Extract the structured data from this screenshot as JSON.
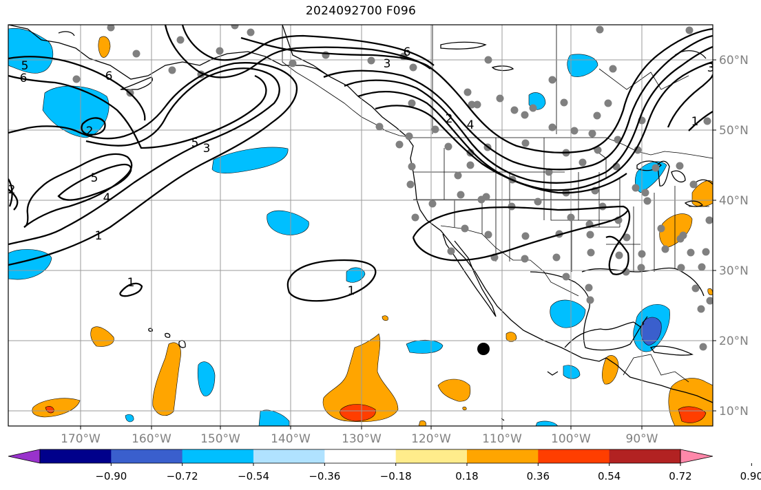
{
  "title": "2024092700 F096",
  "lon_ticks": [
    "170°W",
    "160°W",
    "150°W",
    "140°W",
    "130°W",
    "120°W",
    "110°W",
    "100°W",
    "90°W"
  ],
  "lat_ticks": [
    "60°N",
    "50°N",
    "40°N",
    "30°N",
    "20°N",
    "10°N"
  ],
  "colorbar": {
    "labels": [
      "−0.90",
      "−0.72",
      "−0.54",
      "−0.36",
      "−0.18",
      "0.18",
      "0.36",
      "0.54",
      "0.72",
      "0.90"
    ],
    "colors": [
      "#9932cc",
      "#00008b",
      "#3a5fcd",
      "#00bfff",
      "#b0e2ff",
      "#ffffff",
      "#ffec8b",
      "#ffa500",
      "#ff3e00",
      "#b22222",
      "#ff88aa"
    ]
  },
  "contour_labels": [
    "5",
    "6",
    "6",
    "2",
    "5",
    "4",
    "1",
    "5",
    "3",
    "1",
    "1",
    "6",
    "3",
    "2",
    "4",
    "1",
    "2",
    "3"
  ],
  "extent": {
    "lon": [
      -178,
      -80
    ],
    "lat": [
      8,
      65
    ]
  }
}
